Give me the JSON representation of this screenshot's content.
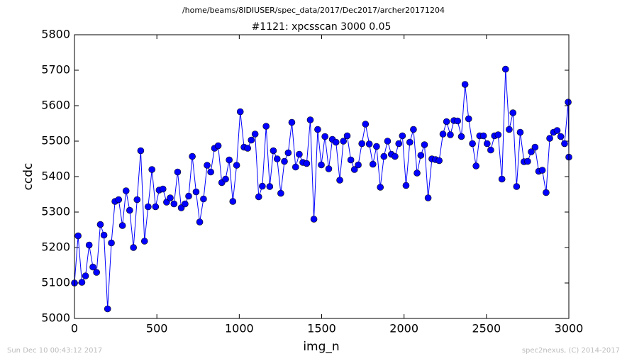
{
  "chart_data": {
    "type": "line",
    "suptitle": "/home/beams/8IDIUSER/spec_data/2017/Dec2017/archer20171204",
    "title": "#1121: xpcsscan 3000 0.05",
    "xlabel": "img_n",
    "ylabel": "ccdc",
    "footer_left": "Sun Dec 10 00:43:12 2017",
    "footer_right": "spec2nexus, (C) 2014-2017",
    "xlim": [
      0,
      3000
    ],
    "xticks": [
      0,
      500,
      1000,
      1500,
      2000,
      2500,
      3000
    ],
    "ylim": [
      5000,
      5800
    ],
    "yticks": [
      5000,
      5100,
      5200,
      5300,
      5400,
      5500,
      5600,
      5700,
      5800
    ],
    "grid": false,
    "x": [
      0,
      22,
      45,
      67,
      89,
      112,
      134,
      157,
      179,
      201,
      224,
      246,
      268,
      291,
      313,
      335,
      358,
      380,
      402,
      425,
      447,
      470,
      492,
      514,
      537,
      559,
      581,
      604,
      626,
      648,
      671,
      693,
      715,
      738,
      760,
      783,
      805,
      827,
      850,
      872,
      894,
      917,
      939,
      961,
      984,
      1006,
      1029,
      1051,
      1073,
      1096,
      1118,
      1140,
      1163,
      1185,
      1207,
      1230,
      1252,
      1274,
      1297,
      1319,
      1342,
      1364,
      1386,
      1409,
      1431,
      1453,
      1476,
      1498,
      1520,
      1543,
      1565,
      1587,
      1610,
      1632,
      1655,
      1677,
      1699,
      1722,
      1744,
      1766,
      1789,
      1811,
      1833,
      1856,
      1878,
      1900,
      1923,
      1945,
      1968,
      1990,
      2012,
      2035,
      2057,
      2079,
      2102,
      2124,
      2146,
      2169,
      2191,
      2213,
      2236,
      2258,
      2281,
      2303,
      2325,
      2348,
      2370,
      2392,
      2415,
      2437,
      2459,
      2482,
      2504,
      2526,
      2549,
      2571,
      2594,
      2616,
      2638,
      2661,
      2683,
      2705,
      2728,
      2750,
      2772,
      2795,
      2817,
      2839,
      2862,
      2884,
      2907,
      2929,
      2951,
      2974,
      2996,
      3000
    ],
    "series": [
      {
        "name": "ccdc",
        "color": "#0000ff",
        "values": [
          5100,
          5233,
          5102,
          5120,
          5207,
          5145,
          5130,
          5265,
          5235,
          5027,
          5213,
          5330,
          5335,
          5262,
          5360,
          5305,
          5200,
          5335,
          5473,
          5218,
          5315,
          5420,
          5315,
          5362,
          5365,
          5328,
          5340,
          5323,
          5413,
          5312,
          5323,
          5345,
          5457,
          5357,
          5272,
          5337,
          5432,
          5413,
          5480,
          5487,
          5383,
          5393,
          5447,
          5330,
          5432,
          5583,
          5483,
          5480,
          5503,
          5520,
          5343,
          5373,
          5542,
          5372,
          5473,
          5450,
          5353,
          5443,
          5467,
          5553,
          5427,
          5463,
          5440,
          5437,
          5560,
          5280,
          5533,
          5433,
          5513,
          5422,
          5505,
          5497,
          5390,
          5500,
          5515,
          5447,
          5420,
          5433,
          5493,
          5548,
          5492,
          5435,
          5485,
          5370,
          5457,
          5500,
          5463,
          5457,
          5493,
          5515,
          5375,
          5497,
          5533,
          5410,
          5460,
          5490,
          5340,
          5450,
          5448,
          5445,
          5520,
          5555,
          5518,
          5558,
          5557,
          5513,
          5660,
          5563,
          5493,
          5430,
          5515,
          5515,
          5493,
          5475,
          5515,
          5518,
          5393,
          5703,
          5533,
          5580,
          5372,
          5525,
          5442,
          5443,
          5470,
          5483,
          5415,
          5418,
          5355,
          5508,
          5525,
          5530,
          5513,
          5493,
          5610,
          5455
        ]
      }
    ]
  }
}
